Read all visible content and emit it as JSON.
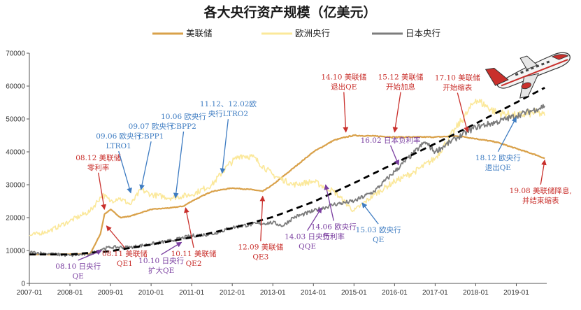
{
  "chart_data": {
    "type": "line",
    "title": "各大央行资产规模（亿美元）",
    "ylim": [
      0,
      70000
    ],
    "yticks": [
      0,
      10000,
      20000,
      30000,
      40000,
      50000,
      60000,
      70000
    ],
    "xlim": [
      2007.0,
      2019.75
    ],
    "xticks": [
      "2007-01",
      "2008-01",
      "2009-01",
      "2010-01",
      "2011-01",
      "2012-01",
      "2013-01",
      "2014-01",
      "2015-01",
      "2016-01",
      "2017-01",
      "2018-01",
      "2019-01"
    ],
    "grid": false,
    "legend": "top-center",
    "series": [
      {
        "name": "美联储",
        "color": "#d9a14a",
        "x": [
          2007.0,
          2007.5,
          2008.0,
          2008.5,
          2008.75,
          2008.85,
          2009.0,
          2009.25,
          2009.5,
          2010.0,
          2010.5,
          2010.8,
          2011.0,
          2011.5,
          2012.0,
          2012.5,
          2012.75,
          2013.0,
          2013.5,
          2014.0,
          2014.5,
          2014.8,
          2015.0,
          2015.5,
          2016.0,
          2016.5,
          2017.0,
          2017.5,
          2017.75,
          2018.0,
          2018.5,
          2019.0,
          2019.5,
          2019.7
        ],
        "y": [
          8800,
          8800,
          8900,
          9000,
          15000,
          21000,
          22500,
          20000,
          20500,
          22500,
          23000,
          23500,
          25000,
          28000,
          29000,
          28500,
          28000,
          30000,
          35000,
          40000,
          43500,
          44500,
          45000,
          44800,
          44500,
          44500,
          44500,
          44800,
          44500,
          44000,
          43000,
          41000,
          39000,
          38000
        ]
      },
      {
        "name": "欧洲央行",
        "color": "#fbe89a",
        "x": [
          2007.0,
          2007.5,
          2008.0,
          2008.5,
          2008.8,
          2009.0,
          2009.2,
          2009.5,
          2009.75,
          2010.0,
          2010.5,
          2011.0,
          2011.5,
          2011.9,
          2012.2,
          2012.5,
          2013.0,
          2013.5,
          2014.0,
          2014.5,
          2015.0,
          2015.5,
          2016.0,
          2016.5,
          2017.0,
          2017.5,
          2017.8,
          2018.0,
          2018.5,
          2019.0,
          2019.5,
          2019.7
        ],
        "y": [
          14500,
          16000,
          19000,
          22000,
          27000,
          25000,
          26000,
          24000,
          28500,
          27000,
          26000,
          27000,
          30000,
          36000,
          39000,
          38500,
          33000,
          30000,
          31000,
          28000,
          22000,
          27000,
          31000,
          34000,
          38000,
          47000,
          52000,
          56000,
          52000,
          51000,
          52000,
          51000
        ]
      },
      {
        "name": "日本央行",
        "color": "#7c7c7c",
        "x": [
          2007.0,
          2007.5,
          2008.0,
          2008.5,
          2008.8,
          2009.0,
          2009.5,
          2010.0,
          2010.5,
          2011.0,
          2011.5,
          2012.0,
          2012.5,
          2013.0,
          2013.25,
          2013.5,
          2014.0,
          2014.5,
          2015.0,
          2015.5,
          2016.0,
          2016.5,
          2016.75,
          2017.0,
          2017.5,
          2018.0,
          2018.5,
          2019.0,
          2019.5,
          2019.7
        ],
        "y": [
          9500,
          9000,
          8500,
          9000,
          10500,
          11000,
          11000,
          12000,
          13000,
          14500,
          15000,
          17000,
          18000,
          18500,
          17500,
          20000,
          22000,
          24000,
          25000,
          28000,
          34000,
          40000,
          43000,
          40000,
          44000,
          47500,
          49000,
          51000,
          53000,
          54000
        ]
      }
    ],
    "trend": {
      "name": "",
      "color": "#000000",
      "x": [
        2007.0,
        2008.0,
        2009.0,
        2010.0,
        2011.0,
        2012.0,
        2013.0,
        2014.0,
        2015.0,
        2016.0,
        2017.0,
        2018.0,
        2019.0,
        2019.7
      ],
      "y": [
        8800,
        8800,
        9800,
        11800,
        14000,
        16800,
        20200,
        24800,
        30500,
        36500,
        42500,
        48600,
        55000,
        59500
      ]
    },
    "annotations": [
      {
        "lines": [
          "08.12 美联储",
          "零利率"
        ],
        "color": "#c9302c",
        "tx": 2008.7,
        "ty": 37500,
        "ax": 2008.85,
        "ay": 22500
      },
      {
        "lines": [
          "09.06 欧央行",
          "LTRO1"
        ],
        "color": "#3e7cc2",
        "tx": 2009.2,
        "ty": 44000,
        "ax": 2009.5,
        "ay": 27500
      },
      {
        "lines": [
          "09.07 欧央行",
          "CBPP1"
        ],
        "color": "#3e7cc2",
        "tx": 2010.0,
        "ty": 47000,
        "ax": 2009.75,
        "ay": 28500
      },
      {
        "lines": [
          "10.06 欧央行",
          "CBPP2"
        ],
        "color": "#3e7cc2",
        "tx": 2010.8,
        "ty": 50000,
        "ax": 2010.6,
        "ay": 26000
      },
      {
        "lines": [
          "11.12、12.02欧",
          "央行LTRO2"
        ],
        "color": "#3e7cc2",
        "tx": 2011.9,
        "ty": 53800,
        "ax": 2011.75,
        "ay": 33500
      },
      {
        "lines": [
          "14.10 美联储",
          "退出QE"
        ],
        "color": "#c9302c",
        "tx": 2014.75,
        "ty": 62000,
        "ax": 2014.8,
        "ay": 46000
      },
      {
        "lines": [
          "15.12 美联储",
          "开始加息"
        ],
        "color": "#c9302c",
        "tx": 2016.15,
        "ty": 62000,
        "ax": 2016.0,
        "ay": 46000
      },
      {
        "lines": [
          "17.10 美联储",
          "开始缩表"
        ],
        "color": "#c9302c",
        "tx": 2017.55,
        "ty": 61800,
        "ax": 2017.8,
        "ay": 46000
      },
      {
        "lines": [
          "16.02 日本负利率"
        ],
        "color": "#7a3ea0",
        "tx": 2015.9,
        "ty": 42800,
        "ax": 2016.1,
        "ay": 36000
      },
      {
        "lines": [
          "18.12 欧央行",
          "退出QE"
        ],
        "color": "#3e7cc2",
        "tx": 2018.55,
        "ty": 37500,
        "ax": 2019.0,
        "ay": 50500
      },
      {
        "lines": [
          "19.08 美联储降息,",
          "并结束缩表"
        ],
        "color": "#c9302c",
        "tx": 2019.6,
        "ty": 27500,
        "ax": 2019.7,
        "ay": 37500
      },
      {
        "lines": [
          "08.10 日央行",
          "QE"
        ],
        "color": "#7a3ea0",
        "tx": 2008.2,
        "ty": 4500,
        "ax": 2008.78,
        "ay": 10000
      },
      {
        "lines": [
          "08.11 美联储",
          "QE1"
        ],
        "color": "#c9302c",
        "tx": 2009.35,
        "ty": 8300,
        "ax": 2008.9,
        "ay": 17500
      },
      {
        "lines": [
          "10.10 日央行",
          "扩大QE"
        ],
        "color": "#7a3ea0",
        "tx": 2010.25,
        "ty": 6200,
        "ax": 2010.75,
        "ay": 12500
      },
      {
        "lines": [
          "10.11 美联储",
          "QE2"
        ],
        "color": "#c9302c",
        "tx": 2011.05,
        "ty": 8300,
        "ax": 2010.85,
        "ay": 23000
      },
      {
        "lines": [
          "12.09 美联储",
          "QE3"
        ],
        "color": "#c9302c",
        "tx": 2012.7,
        "ty": 10300,
        "ax": 2012.75,
        "ay": 26500
      },
      {
        "lines": [
          "14.03 日央行",
          "QQE"
        ],
        "color": "#7a3ea0",
        "tx": 2013.85,
        "ty": 13500,
        "ax": 2014.2,
        "ay": 23000
      },
      {
        "lines": [
          "14.06 欧央行",
          "负利率"
        ],
        "color": "#7a3ea0",
        "tx": 2014.5,
        "ty": 16500,
        "ax": 2014.3,
        "ay": 30000
      },
      {
        "lines": [
          "15.03 欧央行",
          "QE"
        ],
        "color": "#3e7cc2",
        "tx": 2015.6,
        "ty": 15500,
        "ax": 2015.2,
        "ay": 24500
      }
    ]
  }
}
